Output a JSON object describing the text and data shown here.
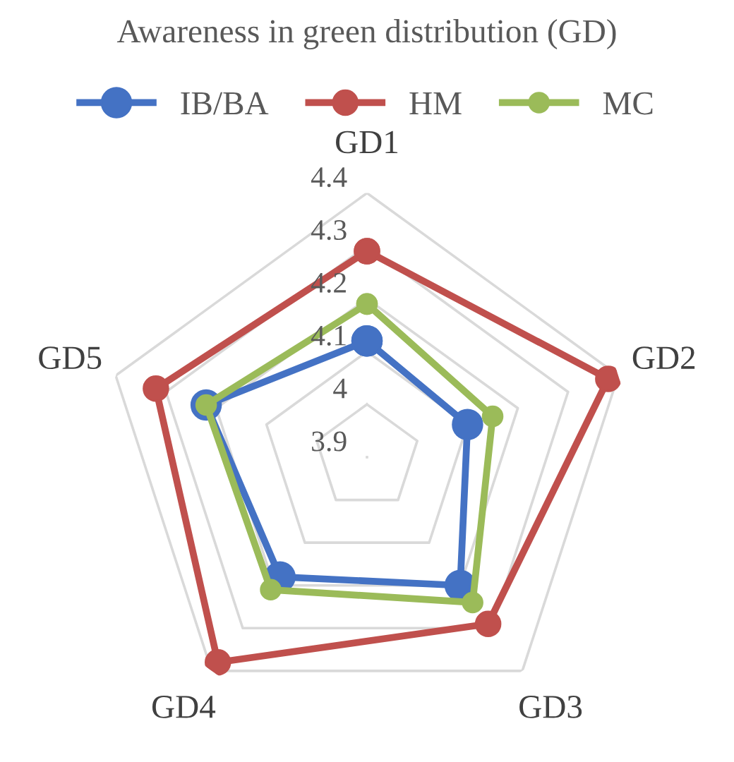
{
  "chart_data": {
    "type": "radar",
    "title": "Awareness in green distribution (GD)",
    "categories": [
      "GD1",
      "GD2",
      "GD3",
      "GD4",
      "GD5"
    ],
    "series": [
      {
        "name": "IB/BA",
        "color": "#4472c4",
        "values": [
          4.12,
          4.1,
          4.2,
          4.18,
          4.22
        ]
      },
      {
        "name": "HM",
        "color": "#c0504d",
        "values": [
          4.29,
          4.38,
          4.29,
          4.38,
          4.32
        ]
      },
      {
        "name": "MC",
        "color": "#9bbb59",
        "values": [
          4.19,
          4.15,
          4.24,
          4.21,
          4.22
        ]
      }
    ],
    "ylim": [
      3.9,
      4.4
    ],
    "yticks": [
      3.9,
      4,
      4.1,
      4.2,
      4.3,
      4.4
    ],
    "grid": true,
    "legend": "top",
    "marker": "circle",
    "line_style": "solid"
  }
}
